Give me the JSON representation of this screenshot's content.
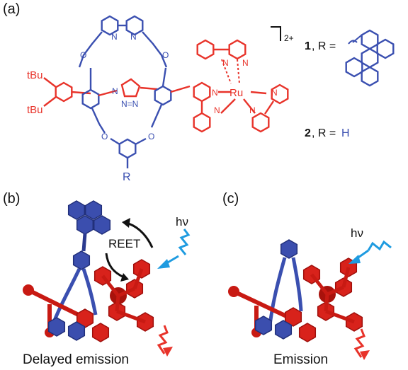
{
  "panels": {
    "a": "(a)",
    "b": "(b)",
    "c": "(c)"
  },
  "structure": {
    "tbu_top": "tBu",
    "tbu_bottom": "tBu",
    "metal": "Ru",
    "r_group": "R",
    "charge": "2+",
    "n_letter": "N"
  },
  "legend": {
    "c1_num": "1",
    "c1_text": ", R =",
    "c2_num": "2",
    "c2_text": ", R = ",
    "c2_h": "H"
  },
  "labels": {
    "reet": "REET",
    "hv_b": "hν",
    "hv_c": "hν",
    "caption_b": "Delayed emission",
    "caption_c": "Emission"
  },
  "colors": {
    "blue": "#3a4fb0",
    "red": "#e8332a",
    "dark_red": "#b5120e",
    "navy": "#2b3a8f",
    "light_blue": "#1e9be0",
    "black": "#111111"
  }
}
